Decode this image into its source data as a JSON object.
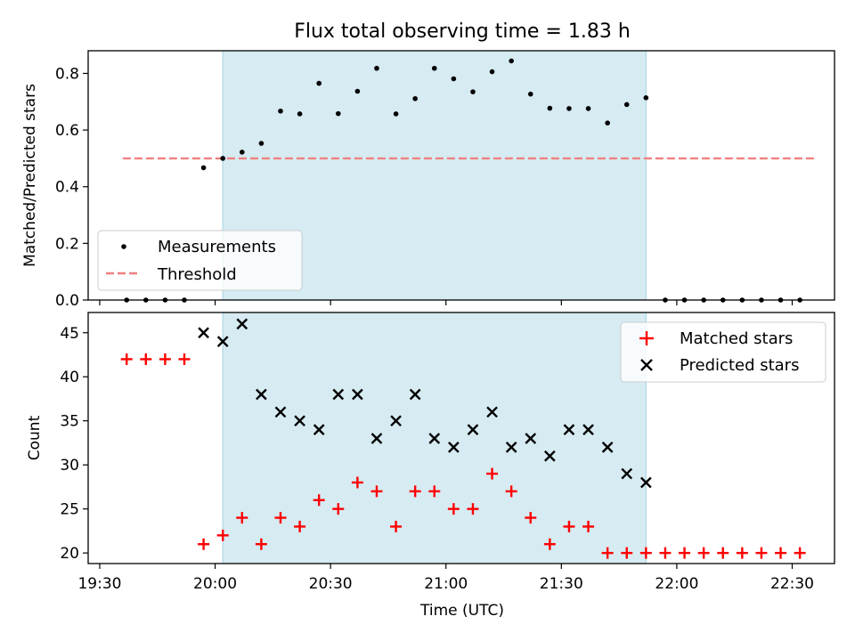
{
  "colors": {
    "band": "#add8e6",
    "measurement": "#000000",
    "threshold": "#f08080",
    "matched": "#ff0000",
    "predicted": "#000000"
  },
  "chart_data": [
    {
      "type": "scatter",
      "title": "Flux total observing time = 1.83 h",
      "xlabel": "",
      "ylabel": "Matched/Predicted stars",
      "xlim": [
        1167,
        1361
      ],
      "ylim": [
        0,
        0.88
      ],
      "yticks": [
        0.0,
        0.2,
        0.4,
        0.6,
        0.8
      ],
      "ytick_labels": [
        "0.0",
        "0.2",
        "0.4",
        "0.6",
        "0.8"
      ],
      "xticks": [
        1170,
        1200,
        1230,
        1260,
        1290,
        1320,
        1350
      ],
      "shaded_interval": [
        1202,
        1312
      ],
      "legend": {
        "location": "lower-left",
        "entries": [
          "Measurements",
          "Threshold"
        ]
      },
      "threshold": {
        "name": "Threshold",
        "value": 0.5,
        "x_range": [
          1176,
          1356
        ]
      },
      "series": [
        {
          "name": "Measurements",
          "x": [
            1177,
            1182,
            1187,
            1192,
            1197,
            1202,
            1207,
            1212,
            1217,
            1222,
            1227,
            1232,
            1237,
            1242,
            1247,
            1252,
            1257,
            1262,
            1267,
            1272,
            1277,
            1282,
            1287,
            1292,
            1297,
            1302,
            1307,
            1312,
            1317,
            1322,
            1327,
            1332,
            1337,
            1342,
            1347,
            1352
          ],
          "y": [
            0,
            0,
            0,
            0,
            0.467,
            0.5,
            0.522,
            0.553,
            0.667,
            0.657,
            0.765,
            0.658,
            0.737,
            0.818,
            0.657,
            0.711,
            0.818,
            0.781,
            0.735,
            0.806,
            0.844,
            0.727,
            0.677,
            0.676,
            0.676,
            0.625,
            0.69,
            0.714,
            0,
            0,
            0,
            0,
            0,
            0,
            0,
            0
          ]
        }
      ]
    },
    {
      "type": "scatter",
      "title": "",
      "xlabel": "Time (UTC)",
      "ylabel": "Count",
      "xlim": [
        1167,
        1361
      ],
      "ylim": [
        18.8,
        47.3
      ],
      "yticks": [
        20,
        25,
        30,
        35,
        40,
        45
      ],
      "ytick_labels": [
        "20",
        "25",
        "30",
        "35",
        "40",
        "45"
      ],
      "xticks": [
        1170,
        1200,
        1230,
        1260,
        1290,
        1320,
        1350
      ],
      "xtick_labels": [
        "19:30",
        "20:00",
        "20:30",
        "21:00",
        "21:30",
        "22:00",
        "22:30"
      ],
      "shaded_interval": [
        1202,
        1312
      ],
      "legend": {
        "location": "upper-right",
        "entries": [
          "Matched stars",
          "Predicted stars"
        ]
      },
      "series": [
        {
          "name": "Matched stars",
          "marker": "+",
          "x": [
            1177,
            1182,
            1187,
            1192,
            1197,
            1202,
            1207,
            1212,
            1217,
            1222,
            1227,
            1232,
            1237,
            1242,
            1247,
            1252,
            1257,
            1262,
            1267,
            1272,
            1277,
            1282,
            1287,
            1292,
            1297,
            1302,
            1307,
            1312,
            1317,
            1322,
            1327,
            1332,
            1337,
            1342,
            1347,
            1352
          ],
          "y": [
            42,
            42,
            42,
            42,
            21,
            22,
            24,
            21,
            24,
            23,
            26,
            25,
            28,
            27,
            23,
            27,
            27,
            25,
            25,
            29,
            27,
            24,
            21,
            23,
            23,
            20,
            20,
            20,
            20,
            20,
            20,
            20,
            20,
            20,
            20,
            20
          ]
        },
        {
          "name": "Predicted stars",
          "marker": "x",
          "x": [
            1197,
            1202,
            1207,
            1212,
            1217,
            1222,
            1227,
            1232,
            1237,
            1242,
            1247,
            1252,
            1257,
            1262,
            1267,
            1272,
            1277,
            1282,
            1287,
            1292,
            1297,
            1302,
            1307,
            1312
          ],
          "y": [
            45,
            44,
            46,
            38,
            36,
            35,
            34,
            38,
            38,
            33,
            35,
            38,
            33,
            32,
            34,
            36,
            32,
            33,
            31,
            34,
            34,
            32,
            29,
            28
          ]
        }
      ]
    }
  ]
}
